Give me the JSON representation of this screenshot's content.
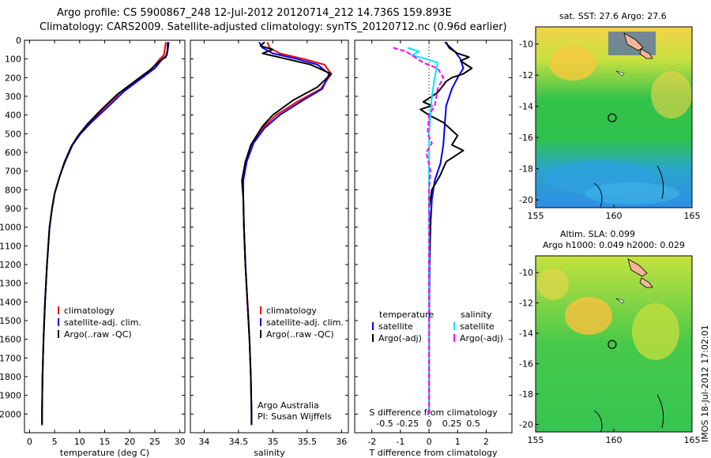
{
  "header": {
    "line1": "Argo profile: CS 5900867_248 12-Jul-2012 20120714_212 14.736S 159.893E",
    "line2": "Climatology: CARS2009. Satellite-adjusted climatology: synTS_20120712.nc (0.96d earlier)"
  },
  "sst_panel": {
    "title": "sat. SST: 27.6 Argo: 27.6"
  },
  "altimetry_panel": {
    "title1": "Altim. SLA: 0.099",
    "title2": "Argo h1000: 0.049 h2000: 0.029"
  },
  "timestamp": "IMOS 18-Jul-2012 17:02:01",
  "annotations": {
    "institution": "Argo Australia",
    "pi": "PI: Susan Wijffels"
  },
  "colors": {
    "climatology": "#ff0000",
    "satellite": "#0000ff",
    "argo": "#000000",
    "sal_satellite": "#00e5ff",
    "sal_argo": "#ff00ff"
  },
  "chart_data": [
    {
      "type": "line",
      "name": "temperature",
      "xlabel": "temperature (deg C)",
      "ylabel": "",
      "xlim": [
        -1,
        31
      ],
      "ylim": [
        2100,
        0
      ],
      "xticks": [
        0,
        5,
        10,
        15,
        20,
        25,
        30
      ],
      "yticks": [
        0,
        100,
        200,
        300,
        400,
        500,
        600,
        700,
        800,
        900,
        1000,
        1100,
        1200,
        1300,
        1400,
        1500,
        1600,
        1700,
        1800,
        1900,
        2000
      ],
      "legend": [
        "climatology",
        "satellite-adj. clim.",
        "Argo(..raw -QC)"
      ],
      "series": [
        {
          "name": "climatology",
          "points": [
            [
              27.2,
              10
            ],
            [
              27,
              50
            ],
            [
              26.8,
              80
            ],
            [
              26,
              100
            ],
            [
              24.5,
              150
            ],
            [
              22,
              200
            ],
            [
              18.5,
              270
            ],
            [
              15,
              360
            ],
            [
              12,
              440
            ],
            [
              10,
              500
            ],
            [
              8.5,
              560
            ],
            [
              7,
              650
            ],
            [
              6,
              730
            ],
            [
              5,
              820
            ],
            [
              4.5,
              900
            ],
            [
              4,
              1000
            ],
            [
              3.5,
              1200
            ],
            [
              3.1,
              1400
            ],
            [
              2.8,
              1600
            ],
            [
              2.6,
              1800
            ],
            [
              2.5,
              2000
            ],
            [
              2.5,
              2060
            ]
          ]
        },
        {
          "name": "satellite-adj. clim.",
          "points": [
            [
              27.8,
              10
            ],
            [
              27.6,
              50
            ],
            [
              27.4,
              80
            ],
            [
              26.5,
              100
            ],
            [
              25,
              150
            ],
            [
              22.5,
              200
            ],
            [
              19,
              270
            ],
            [
              15.5,
              360
            ],
            [
              12.3,
              440
            ],
            [
              10.2,
              500
            ],
            [
              8.6,
              560
            ],
            [
              7.1,
              650
            ],
            [
              6,
              730
            ],
            [
              5,
              820
            ],
            [
              4.5,
              900
            ],
            [
              4,
              1000
            ],
            [
              3.5,
              1200
            ],
            [
              3.1,
              1400
            ],
            [
              2.8,
              1600
            ],
            [
              2.6,
              1800
            ],
            [
              2.5,
              2000
            ],
            [
              2.5,
              2060
            ]
          ]
        },
        {
          "name": "Argo(..raw -QC)",
          "points": [
            [
              27.6,
              10
            ],
            [
              27.5,
              60
            ],
            [
              27.2,
              90
            ],
            [
              26,
              110
            ],
            [
              24,
              160
            ],
            [
              21.5,
              210
            ],
            [
              17.5,
              290
            ],
            [
              14,
              380
            ],
            [
              11.5,
              450
            ],
            [
              9.7,
              510
            ],
            [
              8.3,
              570
            ],
            [
              7,
              650
            ],
            [
              6,
              730
            ],
            [
              5,
              820
            ],
            [
              4.5,
              900
            ],
            [
              4,
              1000
            ],
            [
              3.5,
              1200
            ],
            [
              3.1,
              1400
            ],
            [
              2.8,
              1600
            ],
            [
              2.6,
              1800
            ],
            [
              2.5,
              2000
            ],
            [
              2.5,
              2050
            ]
          ]
        }
      ]
    },
    {
      "type": "line",
      "name": "salinity",
      "xlabel": "salinity",
      "ylabel": "",
      "xlim": [
        33.8,
        36.1
      ],
      "ylim": [
        2100,
        0
      ],
      "xticks": [
        34,
        34.5,
        35,
        35.5,
        36
      ],
      "legend": [
        "climatology",
        "satellite-adj. clim.",
        "Argo(..raw -QC)"
      ],
      "series": [
        {
          "name": "climatology",
          "points": [
            [
              34.92,
              10
            ],
            [
              34.95,
              40
            ],
            [
              35.1,
              70
            ],
            [
              35.45,
              100
            ],
            [
              35.75,
              130
            ],
            [
              35.85,
              180
            ],
            [
              35.7,
              260
            ],
            [
              35.35,
              330
            ],
            [
              35.05,
              400
            ],
            [
              34.85,
              470
            ],
            [
              34.7,
              550
            ],
            [
              34.6,
              650
            ],
            [
              34.57,
              750
            ],
            [
              34.57,
              850
            ],
            [
              34.58,
              1000
            ],
            [
              34.6,
              1200
            ],
            [
              34.63,
              1400
            ],
            [
              34.66,
              1600
            ],
            [
              34.68,
              1800
            ],
            [
              34.69,
              2000
            ],
            [
              34.69,
              2060
            ]
          ]
        },
        {
          "name": "satellite-adj. clim.",
          "points": [
            [
              34.8,
              10
            ],
            [
              34.85,
              40
            ],
            [
              35.0,
              70
            ],
            [
              35.35,
              100
            ],
            [
              35.65,
              130
            ],
            [
              35.82,
              180
            ],
            [
              35.72,
              260
            ],
            [
              35.4,
              330
            ],
            [
              35.1,
              400
            ],
            [
              34.88,
              470
            ],
            [
              34.72,
              550
            ],
            [
              34.62,
              650
            ],
            [
              34.57,
              750
            ],
            [
              34.57,
              850
            ],
            [
              34.58,
              1000
            ],
            [
              34.6,
              1200
            ],
            [
              34.63,
              1400
            ],
            [
              34.66,
              1600
            ],
            [
              34.68,
              1800
            ],
            [
              34.69,
              2000
            ],
            [
              34.69,
              2060
            ]
          ]
        },
        {
          "name": "Argo(..raw -QC)",
          "points": [
            [
              34.88,
              10
            ],
            [
              34.82,
              30
            ],
            [
              35.0,
              50
            ],
            [
              34.85,
              70
            ],
            [
              35.2,
              100
            ],
            [
              35.55,
              130
            ],
            [
              35.85,
              180
            ],
            [
              35.65,
              250
            ],
            [
              35.3,
              320
            ],
            [
              35.0,
              400
            ],
            [
              34.85,
              460
            ],
            [
              34.68,
              560
            ],
            [
              34.6,
              650
            ],
            [
              34.55,
              750
            ],
            [
              34.57,
              850
            ],
            [
              34.58,
              1000
            ],
            [
              34.6,
              1200
            ],
            [
              34.63,
              1400
            ],
            [
              34.66,
              1600
            ],
            [
              34.68,
              1800
            ],
            [
              34.69,
              2000
            ],
            [
              34.69,
              2050
            ]
          ]
        }
      ]
    },
    {
      "type": "line",
      "name": "difference from climatology",
      "xlabel": "T difference from climatology",
      "xlabel_top": "S difference from climatology",
      "xlim": [
        -2.6,
        2.9
      ],
      "ylim": [
        2100,
        0
      ],
      "xticks": [
        -2,
        -1,
        0,
        1,
        2
      ],
      "xticks_s": [
        -0.5,
        -0.25,
        0,
        0.25,
        0.5
      ],
      "legend_temperature": {
        "title": "temperature",
        "items": [
          "satellite",
          "Argo(-adj)"
        ]
      },
      "legend_salinity": {
        "title": "salinity",
        "items": [
          "satellite",
          "Argo(-adj)"
        ]
      },
      "series": [
        {
          "name": "T satellite",
          "points": [
            [
              0.55,
              10
            ],
            [
              0.9,
              60
            ],
            [
              1.1,
              100
            ],
            [
              1.2,
              150
            ],
            [
              1.0,
              200
            ],
            [
              0.8,
              260
            ],
            [
              0.6,
              350
            ],
            [
              0.55,
              450
            ],
            [
              0.5,
              560
            ],
            [
              0.4,
              660
            ],
            [
              0.2,
              750
            ],
            [
              0.1,
              850
            ],
            [
              0.05,
              1000
            ],
            [
              0.02,
              1200
            ],
            [
              0,
              1600
            ],
            [
              0,
              2000
            ]
          ]
        },
        {
          "name": "T Argo(-adj)",
          "points": [
            [
              0.6,
              10
            ],
            [
              0.7,
              40
            ],
            [
              1.0,
              70
            ],
            [
              1.4,
              90
            ],
            [
              1.1,
              110
            ],
            [
              1.5,
              150
            ],
            [
              1.2,
              180
            ],
            [
              0.8,
              200
            ],
            [
              0.6,
              220
            ],
            [
              0.3,
              280
            ],
            [
              -0.2,
              330
            ],
            [
              0.1,
              350
            ],
            [
              -0.3,
              370
            ],
            [
              0,
              400
            ],
            [
              0.5,
              440
            ],
            [
              1.0,
              510
            ],
            [
              0.8,
              560
            ],
            [
              1.2,
              590
            ],
            [
              0.6,
              650
            ],
            [
              0.4,
              720
            ],
            [
              0.1,
              800
            ],
            [
              0,
              900
            ],
            [
              0.05,
              1000
            ],
            [
              0,
              1200
            ],
            [
              0,
              1600
            ],
            [
              0,
              2000
            ]
          ]
        },
        {
          "name": "S satellite",
          "points": [
            [
              -0.75,
              40
            ],
            [
              -0.35,
              60
            ],
            [
              -0.6,
              80
            ],
            [
              -0.1,
              100
            ],
            [
              0.3,
              120
            ],
            [
              0.2,
              200
            ],
            [
              0.1,
              300
            ],
            [
              0.05,
              400
            ],
            [
              0,
              500
            ],
            [
              0,
              700
            ],
            [
              0,
              1000
            ],
            [
              0,
              1500
            ],
            [
              0,
              2000
            ]
          ]
        },
        {
          "name": "S Argo(-adj)",
          "points": [
            [
              -1.25,
              40
            ],
            [
              -0.8,
              60
            ],
            [
              -0.2,
              120
            ],
            [
              0.3,
              150
            ],
            [
              0.5,
              200
            ],
            [
              0.3,
              260
            ],
            [
              0.2,
              350
            ],
            [
              0,
              400
            ],
            [
              -0.05,
              500
            ],
            [
              0.1,
              550
            ],
            [
              -0.1,
              600
            ],
            [
              0.05,
              700
            ],
            [
              0,
              800
            ],
            [
              0,
              1000
            ],
            [
              0,
              1500
            ],
            [
              0,
              2000
            ]
          ]
        }
      ]
    }
  ],
  "maps": [
    {
      "name": "sat. SST",
      "xlim": [
        155,
        165
      ],
      "ylim": [
        -20.5,
        -8.9
      ],
      "xticks": [
        155,
        160,
        165
      ],
      "yticks": [
        -10,
        -12,
        -14,
        -16,
        -18,
        -20
      ],
      "argo_position": [
        159.893,
        -14.736
      ]
    },
    {
      "name": "Altim. SLA",
      "xlim": [
        155,
        165
      ],
      "ylim": [
        -20.5,
        -8.9
      ],
      "xticks": [
        155,
        160,
        165
      ],
      "yticks": [
        -10,
        -12,
        -14,
        -16,
        -18,
        -20
      ],
      "argo_position": [
        159.893,
        -14.736
      ]
    }
  ]
}
